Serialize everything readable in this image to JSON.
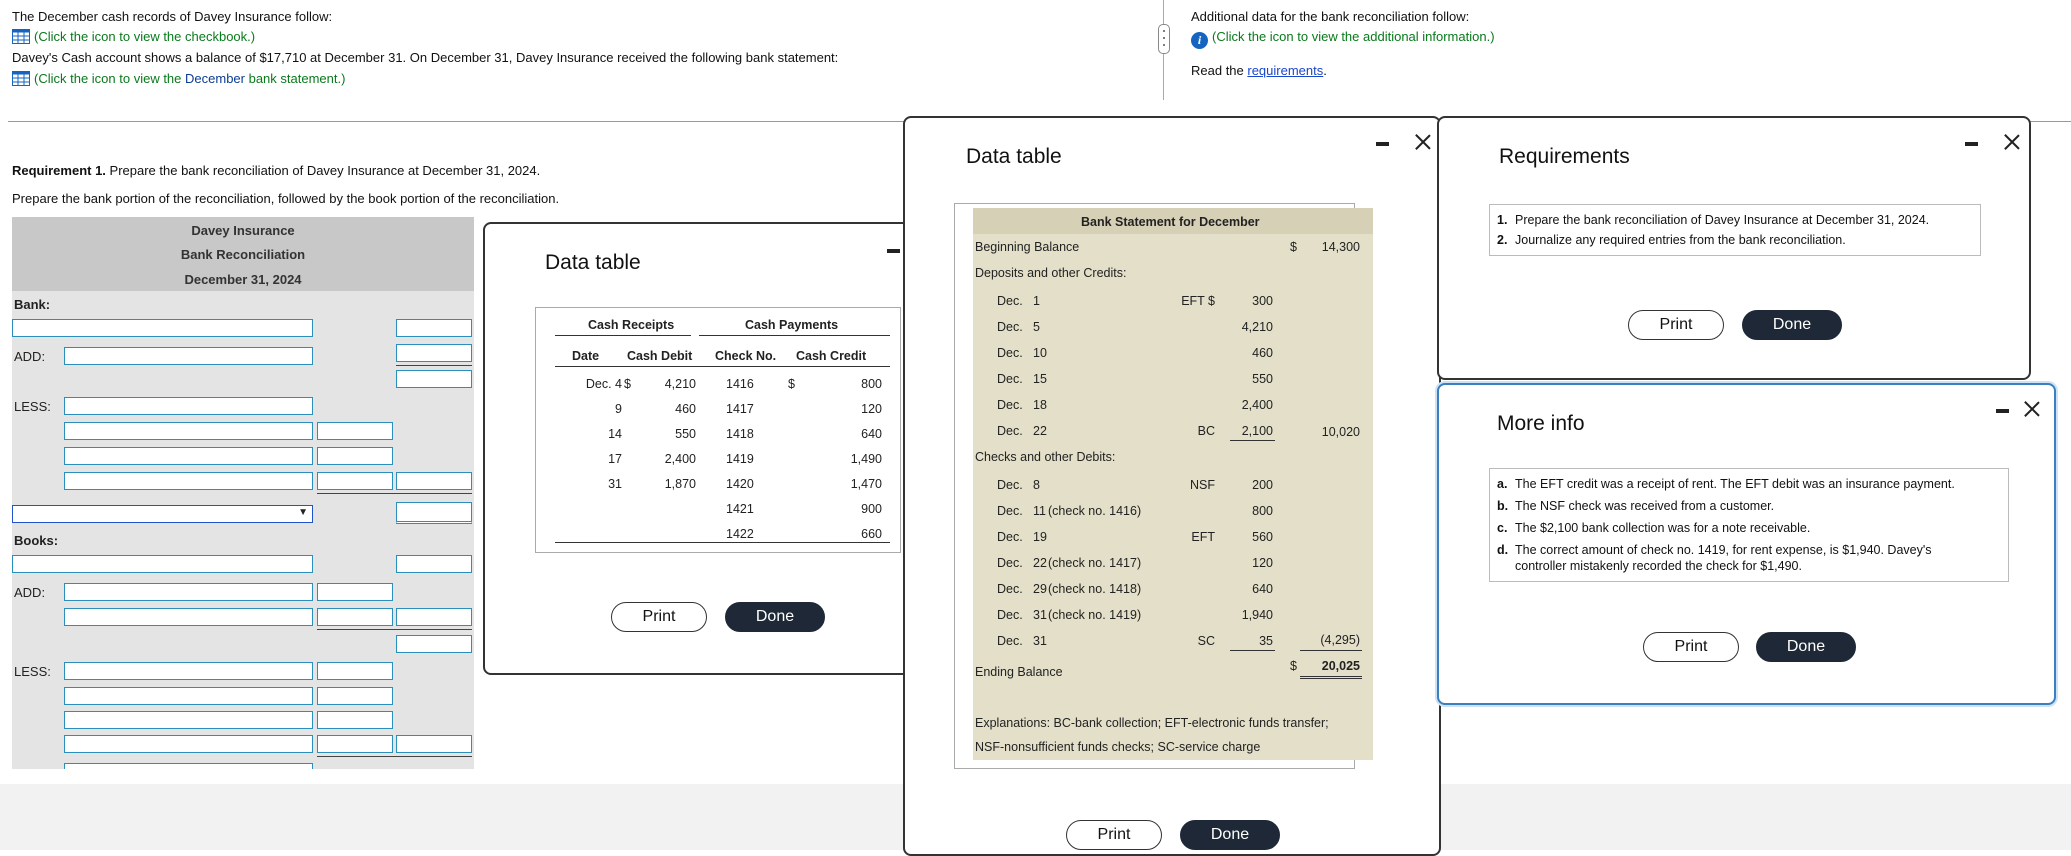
{
  "intro": {
    "line1": "The December cash records of Davey Insurance follow:",
    "checkbook_link": "(Click the icon to view the checkbook.)",
    "line2": "Davey's Cash account shows a balance of $17,710 at December 31. On December 31, Davey Insurance received the following bank statement:",
    "bank_link_pre": "(Click the icon to view the ",
    "bank_link_month": "December",
    "bank_link_post": " bank statement.)"
  },
  "right_intro": {
    "line1": "Additional data for the bank reconciliation follow:",
    "info_link": "(Click the icon to view the additional information.)",
    "read_pre": "Read the ",
    "read_link": "requirements",
    "read_post": "."
  },
  "requirement": {
    "label": "Requirement 1.",
    "text": " Prepare the bank reconciliation of Davey Insurance at December 31, 2024.",
    "instruction": "Prepare the bank portion of the reconciliation, followed by the book portion of the reconciliation."
  },
  "recon": {
    "company": "Davey Insurance",
    "title": "Bank Reconciliation",
    "date": "December 31, 2024",
    "bank_label": "Bank:",
    "add_label": "ADD:",
    "less_label": "LESS:",
    "books_label": "Books:",
    "add2_label": "ADD:",
    "less2_label": "LESS:",
    "dropdown_arrow": "▼"
  },
  "cash_dialog": {
    "title": "Data table",
    "receipts_header": "Cash Receipts",
    "payments_header": "Cash Payments",
    "col_date": "Date",
    "col_debit": "Cash Debit",
    "col_check": "Check No.",
    "col_credit": "Cash Credit",
    "receipts": [
      {
        "date": "Dec. 4",
        "cur": "$",
        "amount": "4,210"
      },
      {
        "date": "9",
        "cur": "",
        "amount": "460"
      },
      {
        "date": "14",
        "cur": "",
        "amount": "550"
      },
      {
        "date": "17",
        "cur": "",
        "amount": "2,400"
      },
      {
        "date": "31",
        "cur": "",
        "amount": "1,870"
      }
    ],
    "payments": [
      {
        "check": "1416",
        "cur": "$",
        "amount": "800"
      },
      {
        "check": "1417",
        "cur": "",
        "amount": "120"
      },
      {
        "check": "1418",
        "cur": "",
        "amount": "640"
      },
      {
        "check": "1419",
        "cur": "",
        "amount": "1,490"
      },
      {
        "check": "1420",
        "cur": "",
        "amount": "1,470"
      },
      {
        "check": "1421",
        "cur": "",
        "amount": "900"
      },
      {
        "check": "1422",
        "cur": "",
        "amount": "660"
      }
    ],
    "print": "Print",
    "done": "Done"
  },
  "bank_dialog": {
    "title": "Data table",
    "header": "Bank Statement for December",
    "beginning_label": "Beginning Balance",
    "beginning_cur": "$",
    "beginning_value": "14,300",
    "deposits_label": "Deposits and other Credits:",
    "deposits": [
      {
        "mon": "Dec.",
        "day": "1",
        "desc": "",
        "code": "EFT $",
        "amount": "300"
      },
      {
        "mon": "Dec.",
        "day": "5",
        "desc": "",
        "code": "",
        "amount": "4,210"
      },
      {
        "mon": "Dec.",
        "day": "10",
        "desc": "",
        "code": "",
        "amount": "460"
      },
      {
        "mon": "Dec.",
        "day": "15",
        "desc": "",
        "code": "",
        "amount": "550"
      },
      {
        "mon": "Dec.",
        "day": "18",
        "desc": "",
        "code": "",
        "amount": "2,400"
      },
      {
        "mon": "Dec.",
        "day": "22",
        "desc": "",
        "code": "BC",
        "amount": "2,100"
      }
    ],
    "deposits_total": "10,020",
    "checks_label": "Checks and other Debits:",
    "checks": [
      {
        "mon": "Dec.",
        "day": "8",
        "desc": "",
        "code": "NSF",
        "amount": "200"
      },
      {
        "mon": "Dec.",
        "day": "11",
        "desc": " (check no. 1416)",
        "code": "",
        "amount": "800"
      },
      {
        "mon": "Dec.",
        "day": "19",
        "desc": "",
        "code": "EFT",
        "amount": "560"
      },
      {
        "mon": "Dec.",
        "day": "22",
        "desc": " (check no. 1417)",
        "code": "",
        "amount": "120"
      },
      {
        "mon": "Dec.",
        "day": "29",
        "desc": " (check no. 1418)",
        "code": "",
        "amount": "640"
      },
      {
        "mon": "Dec.",
        "day": "31",
        "desc": " (check no. 1419)",
        "code": "",
        "amount": "1,940"
      },
      {
        "mon": "Dec.",
        "day": "31",
        "desc": "",
        "code": "SC",
        "amount": "35"
      }
    ],
    "checks_total": "(4,295)",
    "ending_label": "Ending Balance",
    "ending_cur": "$",
    "ending_value": "20,025",
    "explanation1": "Explanations: BC-bank collection; EFT-electronic funds transfer;",
    "explanation2": "NSF-nonsufficient funds checks; SC-service charge",
    "print": "Print",
    "done": "Done"
  },
  "requirements_dialog": {
    "title": "Requirements",
    "items": [
      {
        "num": "1.",
        "text": "Prepare the bank reconciliation of Davey Insurance at December 31, 2024."
      },
      {
        "num": "2.",
        "text": "Journalize any required entries from the bank reconciliation."
      }
    ],
    "print": "Print",
    "done": "Done"
  },
  "more_info_dialog": {
    "title": "More info",
    "items": [
      {
        "letter": "a.",
        "text": "The EFT credit was a receipt of rent. The EFT debit was an insurance payment."
      },
      {
        "letter": "b.",
        "text": "The NSF check was received from a customer."
      },
      {
        "letter": "c.",
        "text": "The $2,100 bank collection was for a note receivable."
      },
      {
        "letter": "d.",
        "text": "The correct amount of check no. 1419, for rent expense, is $1,940. Davey's"
      },
      {
        "letter": "",
        "text": "controller mistakenly recorded the check for $1,490."
      }
    ],
    "print": "Print",
    "done": "Done"
  }
}
